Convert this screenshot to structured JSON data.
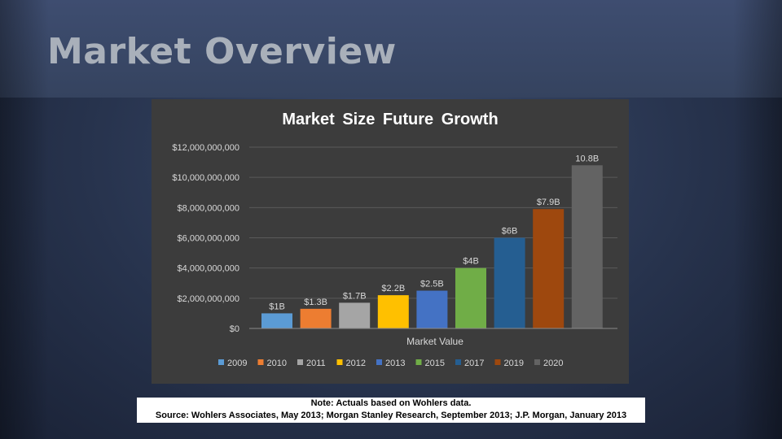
{
  "slide": {
    "title": "Market Overview"
  },
  "note": {
    "line1": "Note: Actuals based on Wohlers data.",
    "line2": "Source: Wohlers Associates, May 2013; Morgan Stanley Research, September 2013; J.P. Morgan, January 2013"
  },
  "chart_data": {
    "type": "bar",
    "title": "Market Size Future Growth",
    "xlabel": "Market Value",
    "ylabel": "",
    "ylim": [
      0,
      12000000000
    ],
    "yticks": [
      0,
      2000000000,
      4000000000,
      6000000000,
      8000000000,
      10000000000,
      12000000000
    ],
    "ytick_labels": [
      "$0",
      "$2,000,000,000",
      "$4,000,000,000",
      "$6,000,000,000",
      "$8,000,000,000",
      "$10,000,000,000",
      "$12,000,000,000"
    ],
    "grid": true,
    "legend": "bottom",
    "series": [
      {
        "name": "2009",
        "value": 1000000000,
        "label": "$1B",
        "color": "#5b9bd5"
      },
      {
        "name": "2010",
        "value": 1300000000,
        "label": "$1.3B",
        "color": "#ed7d31"
      },
      {
        "name": "2011",
        "value": 1700000000,
        "label": "$1.7B",
        "color": "#a5a5a5"
      },
      {
        "name": "2012",
        "value": 2200000000,
        "label": "$2.2B",
        "color": "#ffc000"
      },
      {
        "name": "2013",
        "value": 2500000000,
        "label": "$2.5B",
        "color": "#4472c4"
      },
      {
        "name": "2015",
        "value": 4000000000,
        "label": "$4B",
        "color": "#70ad47"
      },
      {
        "name": "2017",
        "value": 6000000000,
        "label": "$6B",
        "color": "#255e91"
      },
      {
        "name": "2019",
        "value": 7900000000,
        "label": "$7.9B",
        "color": "#9e480e"
      },
      {
        "name": "2020",
        "value": 10800000000,
        "label": "10.8B",
        "color": "#636363"
      }
    ]
  }
}
